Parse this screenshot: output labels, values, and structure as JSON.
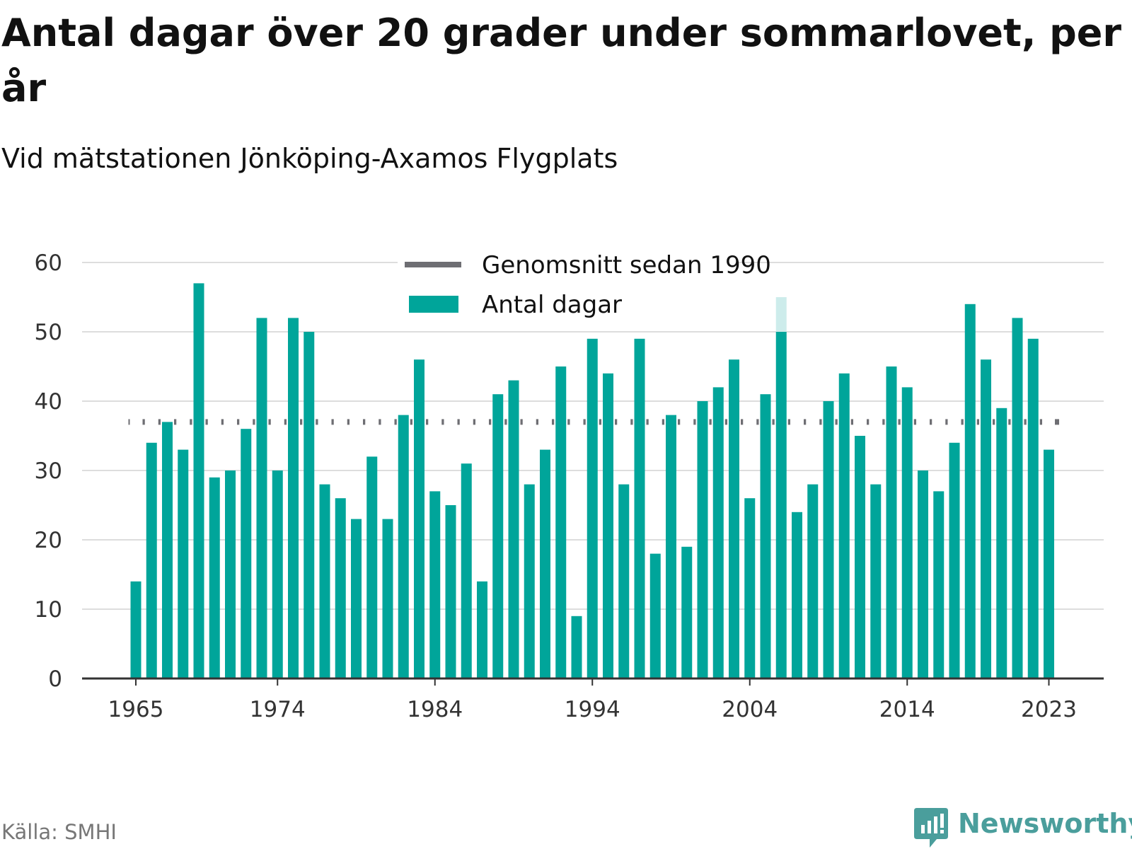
{
  "title": "Antal dagar över 20 grader under sommarlovet, per år",
  "subtitle": "Vid mätstationen Jönköping-Axamos Flygplats",
  "source": "Källa: SMHI",
  "brand": "Newsworthy",
  "colors": {
    "bar": "#00a59a",
    "bar_highlight_ghost": "#cdeceb",
    "average_line": "#6e6e73",
    "brand": "#4a9e9c"
  },
  "legend": {
    "placement": "top-center",
    "average_label": "Genomsnitt sedan 1990",
    "bar_label": "Antal dagar"
  },
  "chart_data": {
    "type": "bar",
    "x": [
      1965,
      1966,
      1967,
      1968,
      1969,
      1970,
      1971,
      1972,
      1973,
      1974,
      1975,
      1976,
      1977,
      1978,
      1979,
      1980,
      1981,
      1982,
      1983,
      1984,
      1985,
      1986,
      1987,
      1988,
      1989,
      1990,
      1991,
      1992,
      1993,
      1994,
      1995,
      1996,
      1997,
      1998,
      1999,
      2000,
      2001,
      2002,
      2003,
      2004,
      2005,
      2006,
      2007,
      2008,
      2009,
      2010,
      2011,
      2012,
      2013,
      2014,
      2015,
      2016,
      2017,
      2018,
      2019,
      2020,
      2021,
      2022,
      2023
    ],
    "x_tick_labels": [
      "1965",
      "1974",
      "1984",
      "1994",
      "2004",
      "2014",
      "2023"
    ],
    "series": [
      {
        "name": "Antal dagar",
        "values": [
          14,
          34,
          37,
          33,
          57,
          29,
          30,
          36,
          52,
          30,
          52,
          50,
          28,
          26,
          23,
          32,
          23,
          38,
          46,
          27,
          25,
          31,
          14,
          41,
          43,
          28,
          33,
          45,
          9,
          49,
          44,
          28,
          49,
          18,
          38,
          19,
          40,
          42,
          46,
          26,
          41,
          55,
          24,
          28,
          40,
          44,
          35,
          28,
          45,
          42,
          30,
          27,
          34,
          54,
          46,
          39,
          52,
          49,
          33
        ]
      }
    ],
    "average": {
      "name": "Genomsnitt sedan 1990",
      "value": 37
    },
    "highlighted_year": 2006,
    "yticks": [
      0,
      10,
      20,
      30,
      40,
      50,
      60
    ],
    "ylim": [
      0,
      60
    ],
    "grid": true
  }
}
